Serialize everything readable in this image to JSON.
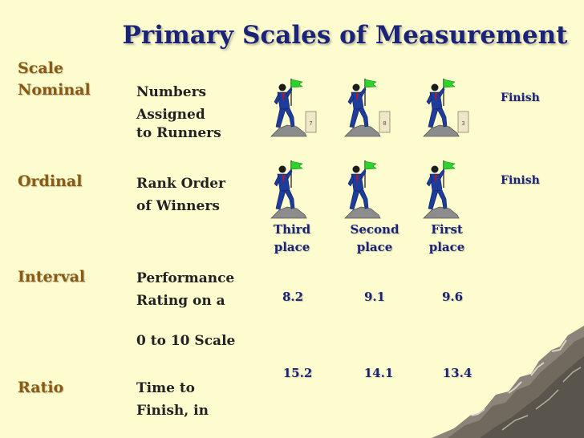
{
  "title": "Primary Scales of Measurement",
  "scale_header": "Scale",
  "rows": {
    "nominal": {
      "label": "Nominal",
      "desc": [
        "Numbers",
        "Assigned",
        "to Runners"
      ],
      "finish": "Finish",
      "runner_numbers": [
        "7",
        "8",
        "3"
      ]
    },
    "ordinal": {
      "label": "Ordinal",
      "desc": [
        "Rank Order",
        "of Winners"
      ],
      "finish": "Finish",
      "places": [
        {
          "line1": "Third",
          "line2": "place"
        },
        {
          "line1": "Second",
          "line2": "place"
        },
        {
          "line1": "First",
          "line2": "place"
        }
      ]
    },
    "interval": {
      "label": "Interval",
      "desc": [
        "Performance",
        "Rating on a",
        "0 to 10 Scale"
      ],
      "values": [
        "8.2",
        "9.1",
        "9.6"
      ]
    },
    "ratio": {
      "label": "Ratio",
      "desc": [
        "Time to",
        "Finish, in"
      ],
      "values": [
        "15.2",
        "14.1",
        "13.4"
      ]
    }
  },
  "colors": {
    "background": "#fdfccf",
    "title": "#1a2377",
    "scale_label": "#8a5a12",
    "accent_blue": "#1a2377",
    "flag": "#2fd12f"
  }
}
